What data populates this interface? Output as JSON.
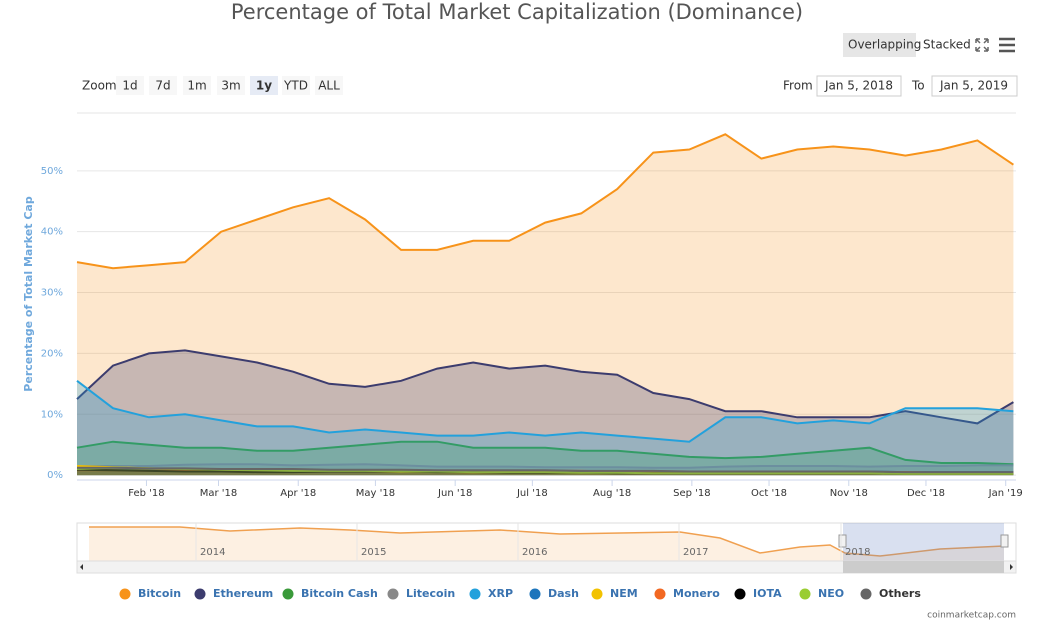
{
  "chart_data": {
    "type": "area",
    "title": "Percentage of Total Market Capitalization (Dominance)",
    "y_label": "Percentage of Total Market Cap",
    "view_buttons": [
      "Overlapping",
      "Stacked"
    ],
    "view_selected": 0,
    "zoom_label": "Zoom",
    "zoom_buttons": [
      "1d",
      "7d",
      "1m",
      "3m",
      "1y",
      "YTD",
      "ALL"
    ],
    "zoom_selected": 4,
    "from_label": "From",
    "from_value": "Jan 5, 2018",
    "to_label": "To",
    "to_value": "Jan 5, 2019",
    "navigator_labels": [
      "2014",
      "2015",
      "2016",
      "2017",
      "2018"
    ],
    "credit": "coinmarketcap.com",
    "x": [
      "2018-01-05",
      "2018-01-19",
      "2018-02-02",
      "2018-02-16",
      "2018-03-02",
      "2018-03-16",
      "2018-03-30",
      "2018-04-13",
      "2018-04-27",
      "2018-05-11",
      "2018-05-25",
      "2018-06-08",
      "2018-06-22",
      "2018-07-06",
      "2018-07-20",
      "2018-08-03",
      "2018-08-17",
      "2018-08-31",
      "2018-09-14",
      "2018-09-28",
      "2018-10-12",
      "2018-10-26",
      "2018-11-09",
      "2018-11-23",
      "2018-12-07",
      "2018-12-21",
      "2019-01-04"
    ],
    "xlim": [
      "2018-01-05",
      "2019-01-05"
    ],
    "xticks": [
      {
        "value": "2018-02-01",
        "label": "Feb '18"
      },
      {
        "value": "2018-03-01",
        "label": "Mar '18"
      },
      {
        "value": "2018-04-01",
        "label": "Apr '18"
      },
      {
        "value": "2018-05-01",
        "label": "May '18"
      },
      {
        "value": "2018-06-01",
        "label": "Jun '18"
      },
      {
        "value": "2018-07-01",
        "label": "Jul '18"
      },
      {
        "value": "2018-08-01",
        "label": "Aug '18"
      },
      {
        "value": "2018-09-01",
        "label": "Sep '18"
      },
      {
        "value": "2018-10-01",
        "label": "Oct '18"
      },
      {
        "value": "2018-11-01",
        "label": "Nov '18"
      },
      {
        "value": "2018-12-01",
        "label": "Dec '18"
      },
      {
        "value": "2019-01-01",
        "label": "Jan '19"
      }
    ],
    "ylim": [
      -0.8,
      59.5
    ],
    "yticks": [
      {
        "value": 0,
        "label": "0%"
      },
      {
        "value": 10,
        "label": "10%"
      },
      {
        "value": 20,
        "label": "20%"
      },
      {
        "value": 30,
        "label": "30%"
      },
      {
        "value": 40,
        "label": "40%"
      },
      {
        "value": 50,
        "label": "50%"
      }
    ],
    "grid": true,
    "series": [
      {
        "name": "Bitcoin",
        "color": "#f7931a",
        "values": [
          35,
          34,
          34.5,
          35,
          40,
          42,
          44,
          45.5,
          42,
          37,
          37,
          38.5,
          38.5,
          41.5,
          43,
          47,
          53,
          53.5,
          56,
          52,
          53.5,
          54,
          53.5,
          52.5,
          53.5,
          55,
          51
        ]
      },
      {
        "name": "Ethereum",
        "color": "#3c3c6e",
        "values": [
          12.5,
          18,
          20,
          20.5,
          19.5,
          18.5,
          17,
          15,
          14.5,
          15.5,
          17.5,
          18.5,
          17.5,
          18,
          17,
          16.5,
          13.5,
          12.5,
          10.5,
          10.5,
          9.5,
          9.5,
          9.5,
          10.5,
          9.5,
          8.5,
          12
        ]
      },
      {
        "name": "Bitcoin Cash",
        "color": "#3a9a3a",
        "values": [
          4.5,
          5.5,
          5,
          4.5,
          4.5,
          4,
          4,
          4.5,
          5,
          5.5,
          5.5,
          4.5,
          4.5,
          4.5,
          4,
          4,
          3.5,
          3,
          2.8,
          3,
          3.5,
          4,
          4.5,
          2.5,
          2,
          2,
          1.8
        ]
      },
      {
        "name": "Litecoin",
        "color": "#888888",
        "values": [
          1.5,
          1.5,
          1.5,
          1.7,
          1.8,
          1.8,
          1.6,
          1.7,
          1.8,
          1.6,
          1.4,
          1.4,
          1.4,
          1.3,
          1.3,
          1.3,
          1.2,
          1.2,
          1.4,
          1.5,
          1.5,
          1.5,
          1.4,
          1.5,
          1.5,
          1.6,
          1.6
        ]
      },
      {
        "name": "XRP",
        "color": "#23a1dc",
        "values": [
          15.5,
          11,
          9.5,
          10,
          9,
          8,
          8,
          7,
          7.5,
          7,
          6.5,
          6.5,
          7,
          6.5,
          7,
          6.5,
          6,
          5.5,
          9.5,
          9.5,
          8.5,
          9,
          8.5,
          11,
          11,
          11,
          10.5
        ]
      },
      {
        "name": "Dash",
        "color": "#1c75bc",
        "values": [
          0.9,
          0.9,
          0.8,
          0.8,
          0.8,
          0.7,
          0.7,
          0.7,
          0.6,
          0.6,
          0.6,
          0.6,
          0.6,
          0.6,
          0.6,
          0.6,
          0.6,
          0.6,
          0.6,
          0.6,
          0.6,
          0.6,
          0.6,
          0.5,
          0.5,
          0.5,
          0.5
        ]
      },
      {
        "name": "NEM",
        "color": "#f2c200",
        "values": [
          1.5,
          1.3,
          1.1,
          1,
          0.9,
          0.8,
          0.7,
          0.6,
          0.6,
          0.5,
          0.5,
          0.4,
          0.4,
          0.4,
          0.3,
          0.3,
          0.3,
          0.3,
          0.3,
          0.3,
          0.3,
          0.3,
          0.3,
          0.3,
          0.2,
          0.2,
          0.2
        ]
      },
      {
        "name": "Monero",
        "color": "#f26822",
        "values": [
          0.8,
          0.8,
          0.7,
          0.8,
          0.8,
          0.8,
          0.7,
          0.7,
          0.8,
          0.8,
          0.7,
          0.7,
          0.7,
          0.7,
          0.7,
          0.6,
          0.6,
          0.6,
          0.6,
          0.6,
          0.5,
          0.5,
          0.5,
          0.5,
          0.4,
          0.4,
          0.4
        ]
      },
      {
        "name": "IOTA",
        "color": "#000000",
        "values": [
          0.9,
          0.8,
          0.7,
          0.6,
          0.6,
          0.5,
          0.5,
          0.6,
          0.6,
          0.6,
          0.5,
          0.5,
          0.4,
          0.4,
          0.4,
          0.3,
          0.3,
          0.3,
          0.3,
          0.3,
          0.3,
          0.3,
          0.3,
          0.2,
          0.2,
          0.2,
          0.2
        ]
      },
      {
        "name": "NEO",
        "color": "#9acd32",
        "values": [
          1,
          1.2,
          1.1,
          1,
          0.9,
          0.8,
          0.7,
          0.7,
          0.7,
          0.6,
          0.6,
          0.5,
          0.5,
          0.5,
          0.4,
          0.4,
          0.3,
          0.3,
          0.3,
          0.3,
          0.3,
          0.3,
          0.3,
          0.2,
          0.2,
          0.2,
          0.2
        ]
      },
      {
        "name": "Others",
        "color": "#666666",
        "values": [
          1.2,
          1.2,
          1.1,
          1.1,
          1,
          1,
          1,
          0.9,
          0.9,
          0.9,
          0.8,
          0.8,
          0.8,
          0.8,
          0.7,
          0.7,
          0.7,
          0.6,
          0.6,
          0.6,
          0.6,
          0.6,
          0.6,
          0.5,
          0.5,
          0.5,
          0.5
        ]
      }
    ]
  }
}
